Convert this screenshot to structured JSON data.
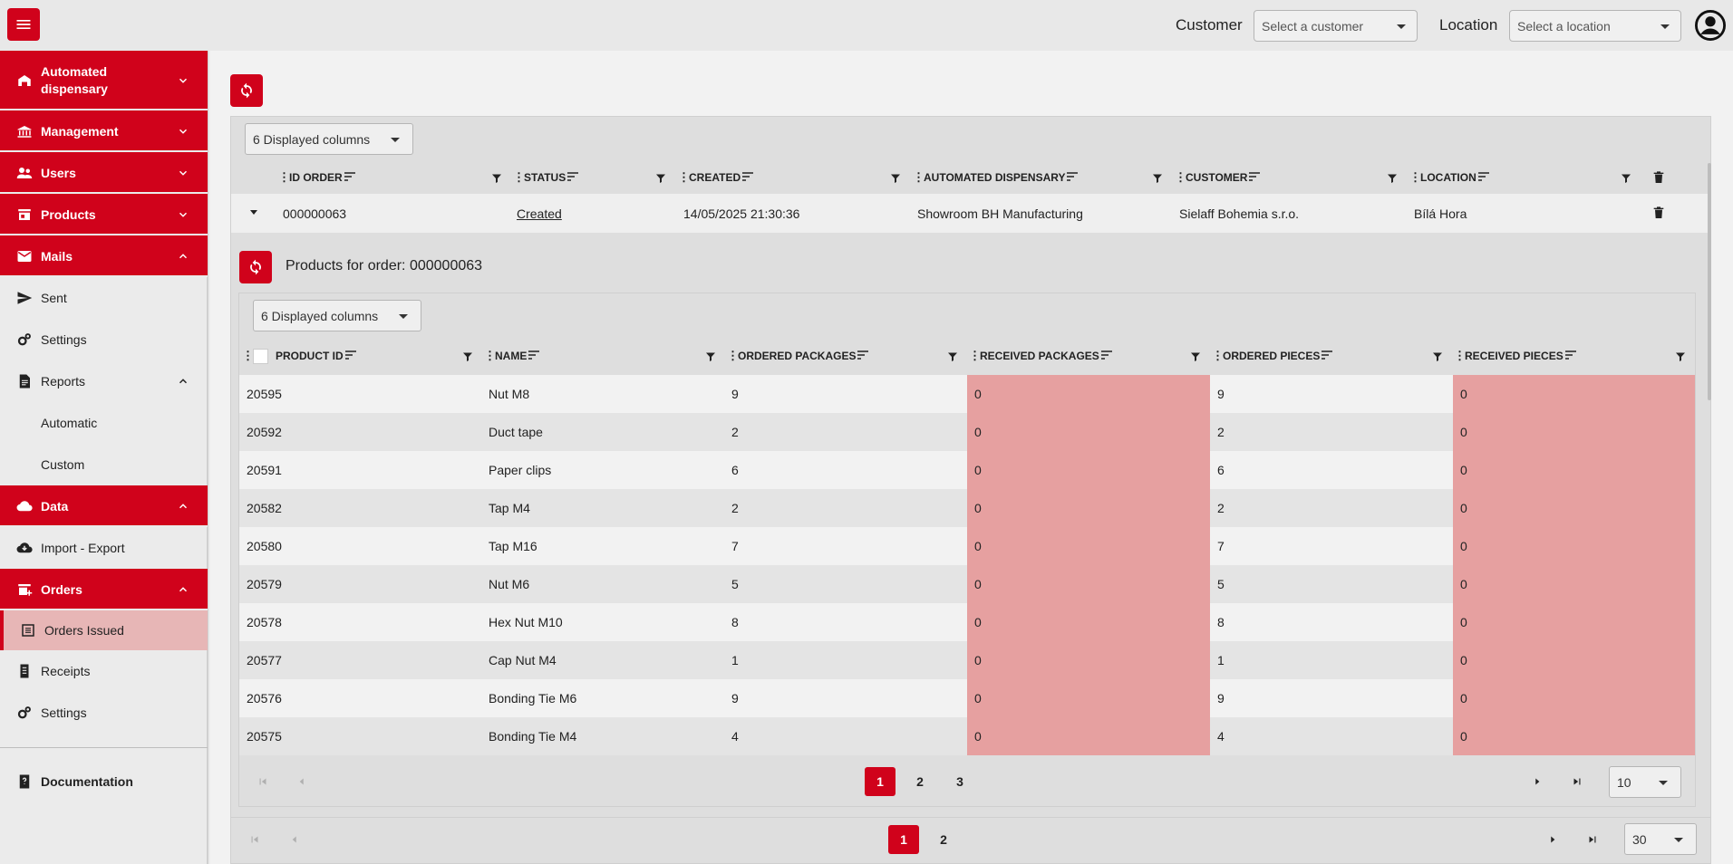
{
  "topbar": {
    "customer_label": "Customer",
    "customer_placeholder": "Select a customer",
    "location_label": "Location",
    "location_placeholder": "Select a location"
  },
  "sidebar": {
    "automated_dispensary": "Automated dispensary",
    "management": "Management",
    "users": "Users",
    "products": "Products",
    "mails": "Mails",
    "sent": "Sent",
    "mails_settings": "Settings",
    "reports": "Reports",
    "automatic": "Automatic",
    "custom": "Custom",
    "data": "Data",
    "import_export": "Import - Export",
    "orders": "Orders",
    "orders_issued": "Orders Issued",
    "receipts": "Receipts",
    "orders_settings": "Settings",
    "documentation": "Documentation"
  },
  "orders_table": {
    "displayed_columns": "6 Displayed columns",
    "headers": {
      "id_order": "ID ORDER",
      "status": "STATUS",
      "created": "CREATED",
      "automated_dispensary": "AUTOMATED DISPENSARY",
      "customer": "CUSTOMER",
      "location": "LOCATION"
    },
    "row": {
      "id_order": "000000063",
      "status": "Created",
      "created": "14/05/2025 21:30:36",
      "automated_dispensary": "Showroom BH Manufacturing",
      "customer": "Sielaff Bohemia s.r.o.",
      "location": "Bílá Hora"
    },
    "pager": {
      "pages": [
        "1",
        "2"
      ],
      "page_size": "30"
    }
  },
  "products_table": {
    "title": "Products for order: 000000063",
    "displayed_columns": "6 Displayed columns",
    "headers": {
      "product_id": "PRODUCT ID",
      "name": "NAME",
      "ordered_packages": "ORDERED PACKAGES",
      "received_packages": "RECEIVED PACKAGES",
      "ordered_pieces": "ORDERED PIECES",
      "received_pieces": "RECEIVED PIECES"
    },
    "rows": [
      {
        "id": "20595",
        "name": "Nut M8",
        "op": "9",
        "rp": "0",
        "opc": "9",
        "rpc": "0"
      },
      {
        "id": "20592",
        "name": "Duct tape",
        "op": "2",
        "rp": "0",
        "opc": "2",
        "rpc": "0"
      },
      {
        "id": "20591",
        "name": "Paper clips",
        "op": "6",
        "rp": "0",
        "opc": "6",
        "rpc": "0"
      },
      {
        "id": "20582",
        "name": "Tap M4",
        "op": "2",
        "rp": "0",
        "opc": "2",
        "rpc": "0"
      },
      {
        "id": "20580",
        "name": "Tap M16",
        "op": "7",
        "rp": "0",
        "opc": "7",
        "rpc": "0"
      },
      {
        "id": "20579",
        "name": "Nut M6",
        "op": "5",
        "rp": "0",
        "opc": "5",
        "rpc": "0"
      },
      {
        "id": "20578",
        "name": "Hex Nut M10",
        "op": "8",
        "rp": "0",
        "opc": "8",
        "rpc": "0"
      },
      {
        "id": "20577",
        "name": "Cap Nut M4",
        "op": "1",
        "rp": "0",
        "opc": "1",
        "rpc": "0"
      },
      {
        "id": "20576",
        "name": "Bonding Tie M6",
        "op": "9",
        "rp": "0",
        "opc": "9",
        "rpc": "0"
      },
      {
        "id": "20575",
        "name": "Bonding Tie M4",
        "op": "4",
        "rp": "0",
        "opc": "4",
        "rpc": "0"
      }
    ],
    "pager": {
      "pages": [
        "1",
        "2",
        "3"
      ],
      "page_size": "10"
    }
  },
  "colors": {
    "accent": "#d0021b",
    "highlight": "#e6a0a0",
    "active_nav": "#e7b6b6"
  }
}
